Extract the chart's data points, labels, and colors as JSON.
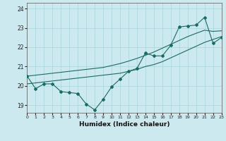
{
  "xlabel": "Humidex (Indice chaleur)",
  "ylabel": "",
  "background_color": "#cce9ef",
  "grid_color": "#aad4dc",
  "line_color": "#1a6b62",
  "x_data": [
    0,
    1,
    2,
    3,
    4,
    5,
    6,
    7,
    8,
    9,
    10,
    11,
    12,
    13,
    14,
    15,
    16,
    17,
    18,
    19,
    20,
    21,
    22,
    23
  ],
  "y_main": [
    20.5,
    19.85,
    20.1,
    20.1,
    19.7,
    19.65,
    19.6,
    19.05,
    18.75,
    19.3,
    19.95,
    20.35,
    20.75,
    20.9,
    21.7,
    21.55,
    21.55,
    22.1,
    23.05,
    23.1,
    23.15,
    23.55,
    22.2,
    22.5
  ],
  "y_trend1": [
    20.1,
    20.15,
    20.2,
    20.25,
    20.3,
    20.35,
    20.4,
    20.45,
    20.5,
    20.55,
    20.6,
    20.65,
    20.75,
    20.85,
    21.0,
    21.1,
    21.25,
    21.45,
    21.65,
    21.85,
    22.05,
    22.25,
    22.4,
    22.55
  ],
  "y_trend2": [
    20.5,
    20.55,
    20.6,
    20.65,
    20.7,
    20.75,
    20.8,
    20.85,
    20.9,
    20.95,
    21.05,
    21.15,
    21.28,
    21.42,
    21.58,
    21.75,
    21.95,
    22.15,
    22.35,
    22.55,
    22.72,
    22.88,
    22.82,
    22.85
  ],
  "xlim": [
    0,
    23
  ],
  "ylim": [
    18.6,
    24.3
  ],
  "yticks": [
    19,
    20,
    21,
    22,
    23,
    24
  ],
  "xticks": [
    0,
    1,
    2,
    3,
    4,
    5,
    6,
    7,
    8,
    9,
    10,
    11,
    12,
    13,
    14,
    15,
    16,
    17,
    18,
    19,
    20,
    21,
    22,
    23
  ]
}
